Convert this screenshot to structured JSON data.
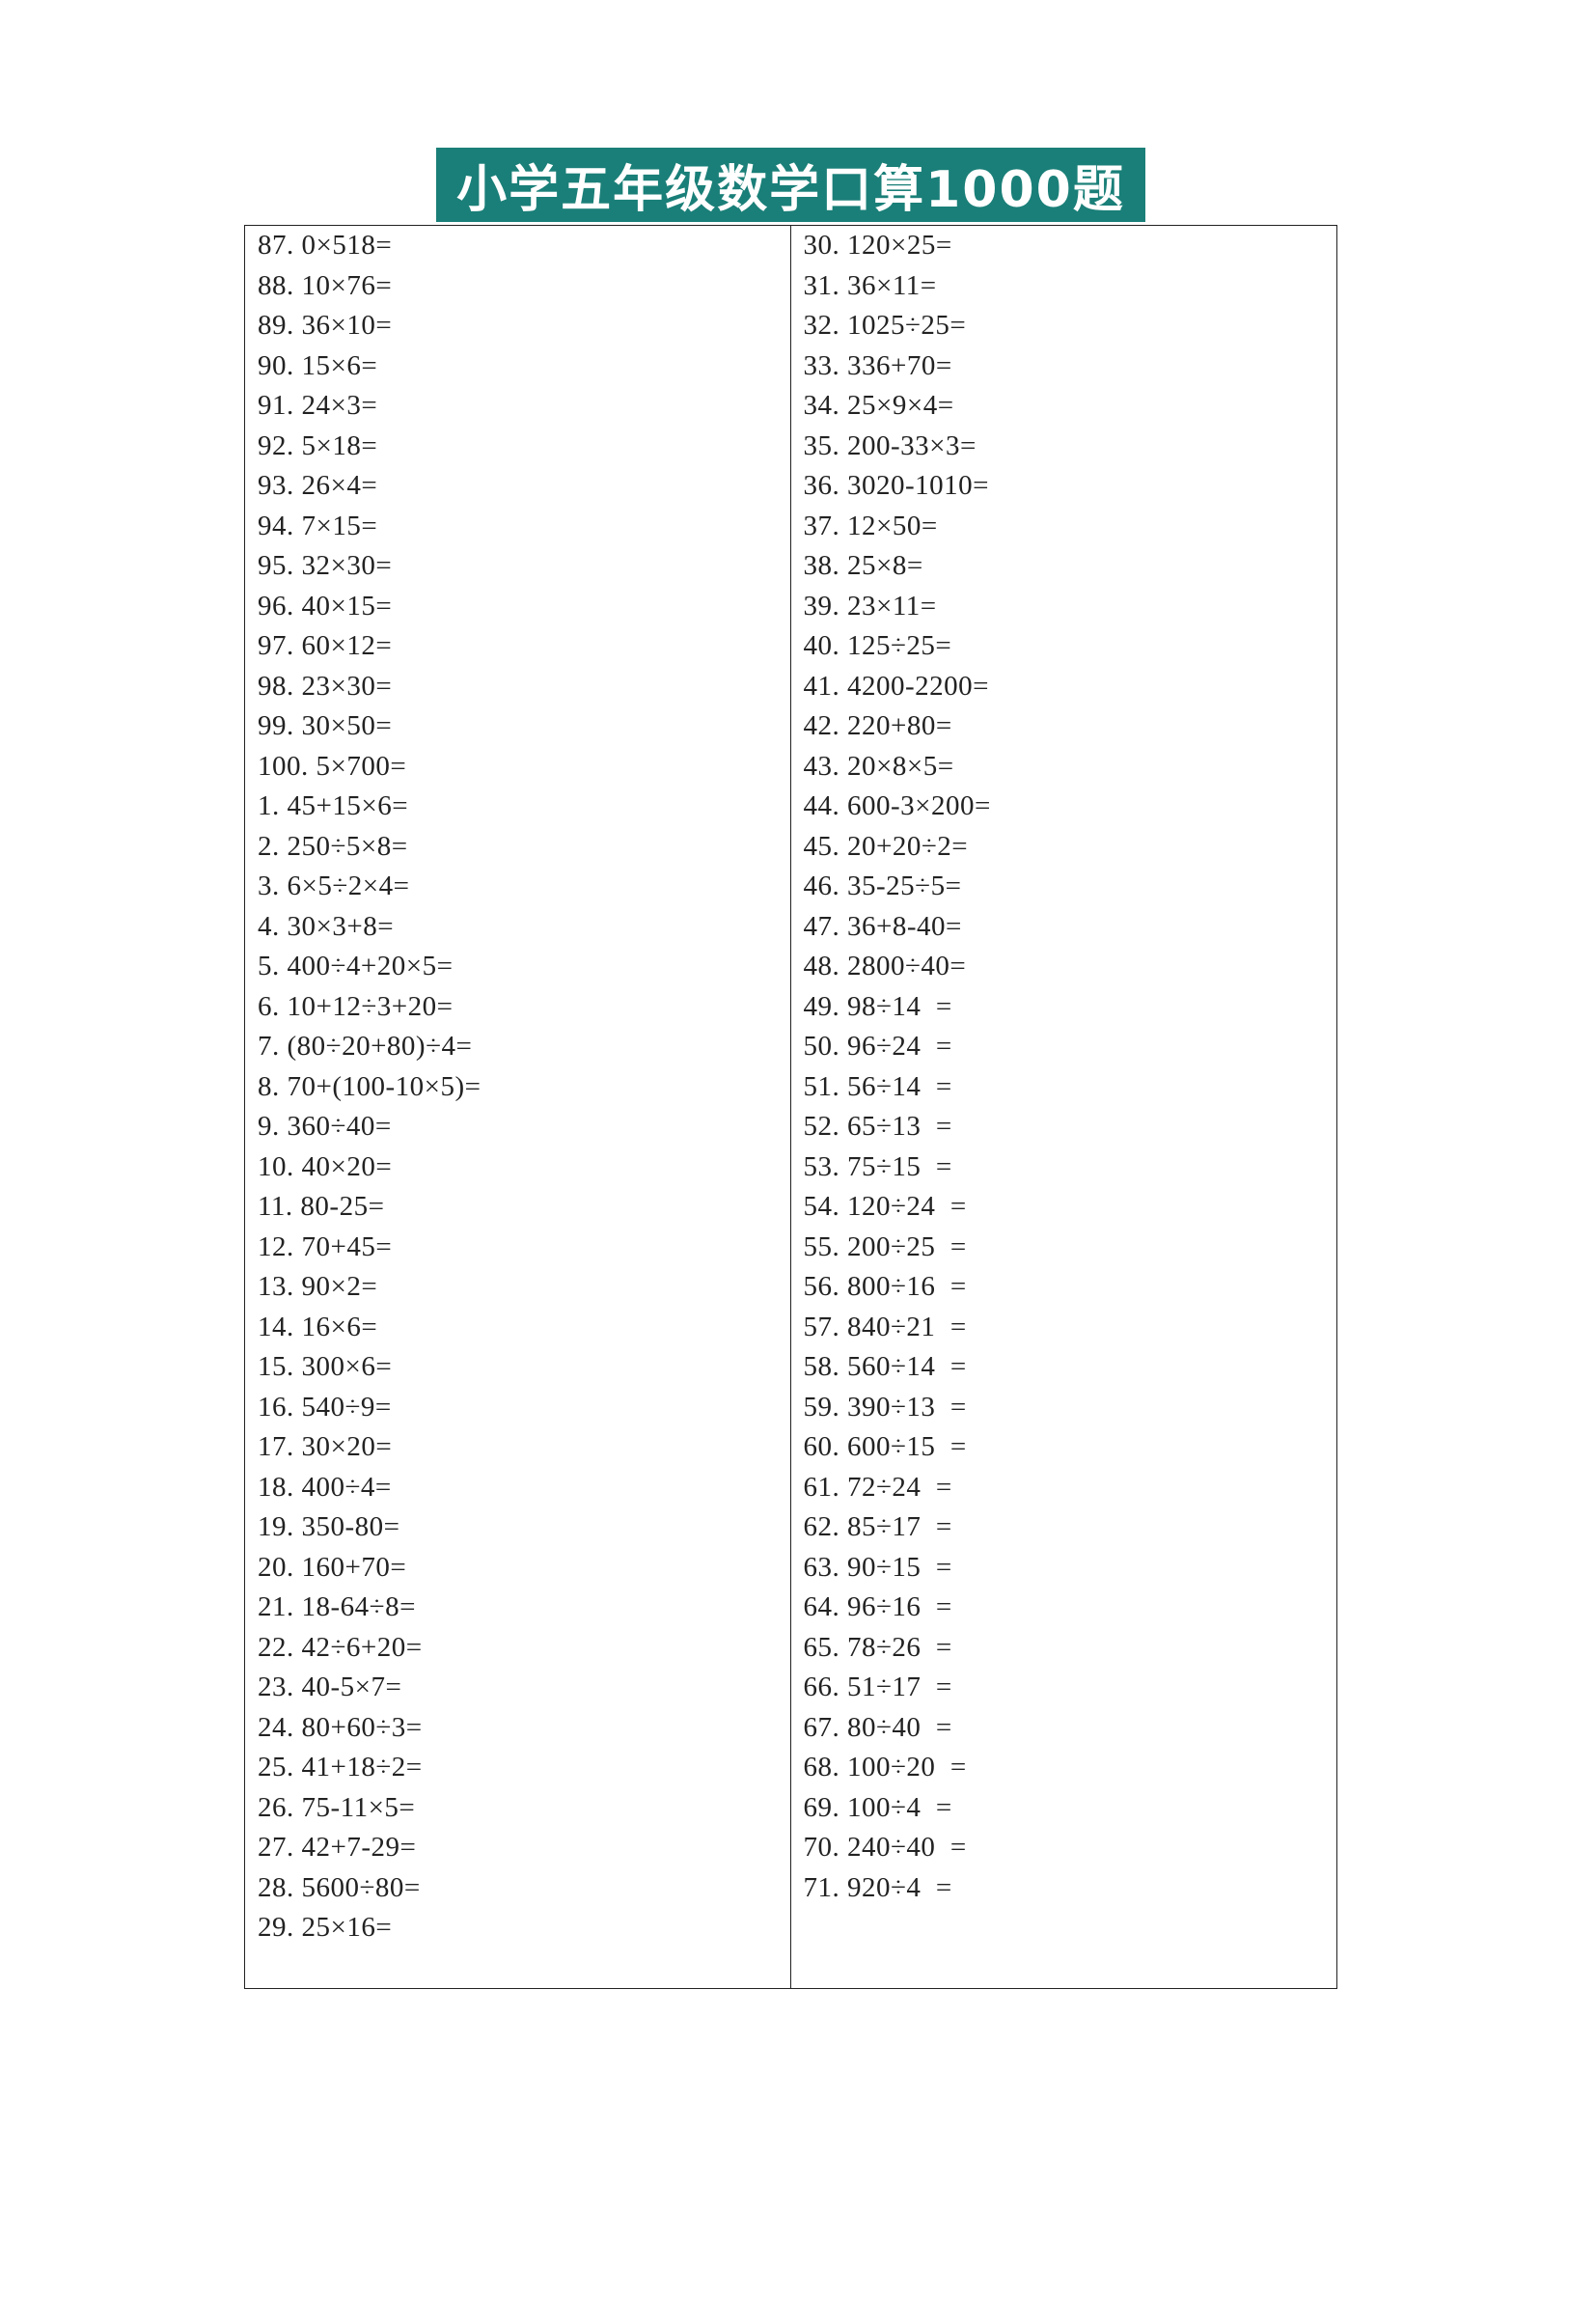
{
  "title": "小学五年级数学口算1000题",
  "left_column": [
    "87. 0×518=",
    "88. 10×76=",
    "89. 36×10=",
    "90. 15×6=",
    "91. 24×3=",
    "92. 5×18=",
    "93. 26×4=",
    "94. 7×15=",
    "95. 32×30=",
    "96. 40×15=",
    "97. 60×12=",
    "98. 23×30=",
    "99. 30×50=",
    "100. 5×700=",
    "1. 45+15×6=",
    "2. 250÷5×8=",
    "3. 6×5÷2×4=",
    "4. 30×3+8=",
    "5. 400÷4+20×5=",
    "6. 10+12÷3+20=",
    "7. (80÷20+80)÷4=",
    "8. 70+(100-10×5)=",
    "9. 360÷40=",
    "10. 40×20=",
    "11. 80-25=",
    "12. 70+45=",
    "13. 90×2=",
    "14. 16×6=",
    "15. 300×6=",
    "16. 540÷9=",
    "17. 30×20=",
    "18. 400÷4=",
    "19. 350-80=",
    "20. 160+70=",
    "21. 18-64÷8=",
    "22. 42÷6+20=",
    "23. 40-5×7=",
    "24. 80+60÷3=",
    "25. 41+18÷2=",
    "26. 75-11×5=",
    "27. 42+7-29=",
    "28. 5600÷80=",
    "29. 25×16="
  ],
  "right_column": [
    "30. 120×25=",
    "31. 36×11=",
    "32. 1025÷25=",
    "33. 336+70=",
    "34. 25×9×4=",
    "35. 200-33×3=",
    "36. 3020-1010=",
    "37. 12×50=",
    "38. 25×8=",
    "39. 23×11=",
    "40. 125÷25=",
    "41. 4200-2200=",
    "42. 220+80=",
    "43. 20×8×5=",
    "44. 600-3×200=",
    "45. 20+20÷2=",
    "46. 35-25÷5=",
    "47. 36+8-40=",
    "48. 2800÷40=",
    "49. 98÷14  =",
    "50. 96÷24  =",
    "51. 56÷14  =",
    "52. 65÷13  =",
    "53. 75÷15  =",
    "54. 120÷24  =",
    "55. 200÷25  =",
    "56. 800÷16  =",
    "57. 840÷21  =",
    "58. 560÷14  =",
    "59. 390÷13  =",
    "60. 600÷15  =",
    "61. 72÷24  =",
    "62. 85÷17  =",
    "63. 90÷15  =",
    "64. 96÷16  =",
    "65. 78÷26  =",
    "66. 51÷17  =",
    "67. 80÷40  =",
    "68. 100÷20  =",
    "69. 100÷4  =",
    "70. 240÷40  =",
    "71. 920÷4  ="
  ],
  "colors": {
    "title_bg": "#1a7f78",
    "title_text": "#ffffff",
    "border": "#222222"
  }
}
